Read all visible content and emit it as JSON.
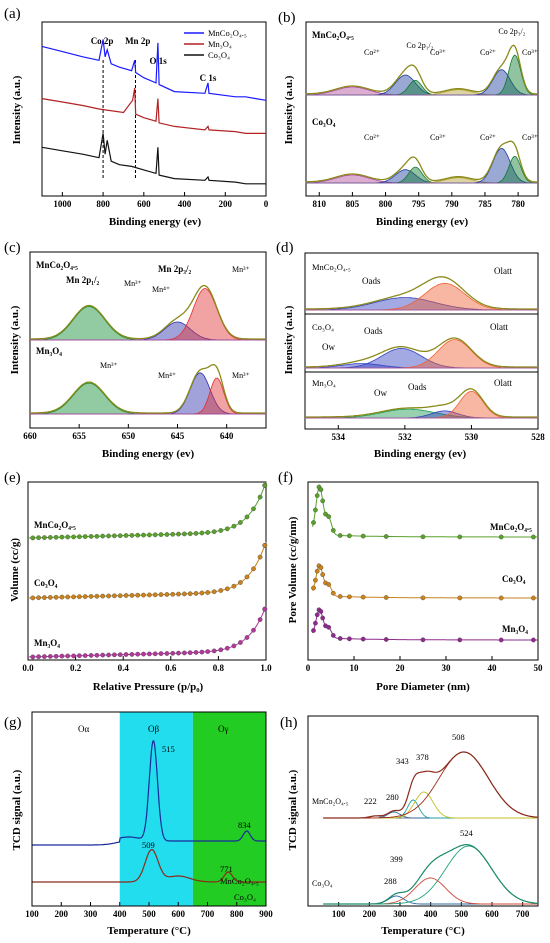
{
  "panels": [
    {
      "id": "a",
      "label": "(a)",
      "type": "line",
      "xlabel": "Binding energy (ev)",
      "ylabel": "Intensity (a.u.)",
      "xlim": [
        1100,
        0
      ],
      "ylim": [
        0,
        100
      ],
      "xticks": [
        1000,
        800,
        600,
        400,
        200,
        0
      ],
      "legend": [
        "MnCo₂O₄.₅",
        "Mn₃O₄",
        "Co₃O₄"
      ],
      "annotations": [
        "Co 2p",
        "Mn 2p",
        "O 1s",
        "C 1s"
      ],
      "series": [
        {
          "name": "MnCo₂O₄.₅",
          "color": "#1a1aff",
          "x": [
            1100,
            1000,
            900,
            820,
            800,
            790,
            780,
            760,
            720,
            660,
            645,
            640,
            600,
            540,
            531,
            525,
            450,
            300,
            285,
            280,
            150,
            100,
            50,
            0
          ],
          "y": [
            86,
            83,
            80,
            78,
            90,
            80,
            84,
            76,
            74,
            72,
            78,
            71,
            68,
            65,
            88,
            64,
            60,
            59,
            65,
            59,
            57,
            57,
            56,
            55
          ]
        },
        {
          "name": "Mn₃O₄",
          "color": "#b22222",
          "x": [
            1100,
            1000,
            900,
            820,
            700,
            655,
            645,
            640,
            600,
            540,
            531,
            525,
            450,
            300,
            285,
            280,
            150,
            100,
            50,
            0
          ],
          "y": [
            56,
            54,
            52,
            50,
            48,
            55,
            62,
            47,
            45,
            43,
            56,
            42,
            40,
            38,
            40,
            38,
            37,
            36,
            36,
            36
          ]
        },
        {
          "name": "Co₃O₄",
          "color": "#111111",
          "x": [
            1100,
            1000,
            900,
            820,
            800,
            790,
            780,
            760,
            720,
            660,
            600,
            540,
            531,
            525,
            450,
            300,
            285,
            280,
            150,
            100,
            50,
            0
          ],
          "y": [
            28,
            26,
            24,
            22,
            36,
            24,
            32,
            20,
            18,
            17,
            15,
            13,
            28,
            12,
            10,
            9,
            11,
            9,
            8,
            7,
            7,
            7
          ]
        }
      ]
    },
    {
      "id": "b",
      "label": "(b)",
      "type": "line",
      "xlabel": "Binding energy (ev)",
      "ylabel": "Intensity (a.u.)",
      "xlim": [
        812,
        777
      ],
      "ylim": [
        0,
        100
      ],
      "xticks": [
        810,
        805,
        800,
        795,
        790,
        785,
        780
      ],
      "subtitles": [
        "MnCo₂O₄.₅",
        "Co₃O₄"
      ],
      "annotations": [
        "Co²⁺",
        "Co 2p₁/₂",
        "Co³⁺",
        "Co²⁺",
        "Co 2p₃/₂",
        "Co³⁺"
      ],
      "stacks": [
        {
          "name": "MnCo₂O₄.₅",
          "peaks": [
            {
              "center": 805,
              "height": 6,
              "width": 2.5,
              "color": "#b04a9a"
            },
            {
              "center": 797,
              "height": 15,
              "width": 1.5,
              "color": "#1f3fa0"
            },
            {
              "center": 795.5,
              "height": 11,
              "width": 1.0,
              "color": "#0e7a2e"
            },
            {
              "center": 789,
              "height": 4,
              "width": 2.0,
              "color": "#b0a030"
            },
            {
              "center": 782.5,
              "height": 19,
              "width": 1.3,
              "color": "#1f3fa0"
            },
            {
              "center": 780.5,
              "height": 30,
              "width": 0.9,
              "color": "#0e7a2e"
            }
          ]
        },
        {
          "name": "Co₃O₄",
          "peaks": [
            {
              "center": 805,
              "height": 6,
              "width": 2.5,
              "color": "#b04a9a"
            },
            {
              "center": 797,
              "height": 10,
              "width": 1.5,
              "color": "#1f3fa0"
            },
            {
              "center": 795.5,
              "height": 12,
              "width": 1.0,
              "color": "#0e7a2e"
            },
            {
              "center": 789,
              "height": 4,
              "width": 2.0,
              "color": "#b0a030"
            },
            {
              "center": 782.5,
              "height": 26,
              "width": 1.3,
              "color": "#1f3fa0"
            },
            {
              "center": 780.5,
              "height": 20,
              "width": 0.9,
              "color": "#0e7a2e"
            }
          ]
        }
      ]
    },
    {
      "id": "c",
      "label": "(c)",
      "type": "line",
      "xlabel": "Binding energy (ev)",
      "ylabel": "Intensity (a.u.)",
      "xlim": [
        660,
        636
      ],
      "ylim": [
        0,
        100
      ],
      "xticks": [
        660,
        655,
        650,
        645,
        640
      ],
      "subtitles": [
        "MnCo₂O₄.₅",
        "Mn₃O₄"
      ],
      "annotations": [
        "Mn 2p₁/₂",
        "Mn³⁺",
        "Mn⁴⁺",
        "Mn 2p₃/₂",
        "Mn³⁺",
        "Mn³⁺",
        "Mn⁴⁺",
        "Mn³⁺"
      ],
      "stacks": [
        {
          "name": "MnCo₂O₄.₅",
          "peaks": [
            {
              "center": 654,
              "height": 26,
              "width": 1.6,
              "color": "#0e8a2e"
            },
            {
              "center": 645,
              "height": 14,
              "width": 1.3,
              "color": "#3030b0"
            },
            {
              "center": 642.2,
              "height": 40,
              "width": 1.2,
              "color": "#e03030"
            }
          ]
        },
        {
          "name": "Mn₃O₄",
          "peaks": [
            {
              "center": 654,
              "height": 24,
              "width": 1.6,
              "color": "#0e8a2e"
            },
            {
              "center": 642.7,
              "height": 32,
              "width": 1.0,
              "color": "#3030b0"
            },
            {
              "center": 641,
              "height": 28,
              "width": 0.7,
              "color": "#e03030"
            }
          ]
        }
      ]
    },
    {
      "id": "d",
      "label": "(d)",
      "type": "line",
      "xlabel": "Binding energy (ev)",
      "ylabel": "Intensity (a.u.)",
      "xlim": [
        535,
        528
      ],
      "ylim": [
        0,
        100
      ],
      "xticks": [
        534,
        532,
        530,
        528
      ],
      "subtitles": [
        "MnCo₂O₄.₅",
        "Co₃O₄",
        "Mn₃O₄"
      ],
      "annotations": [
        "Oads",
        "Olatt",
        "Ow",
        "Oads",
        "Olatt",
        "Ow",
        "Oads",
        "Olatt"
      ],
      "stacks": [
        {
          "name": "MnCo₂O₄.₅",
          "peaks": [
            {
              "center": 532,
              "height": 14,
              "width": 0.9,
              "color": "#3040c0"
            },
            {
              "center": 530.8,
              "height": 30,
              "width": 0.6,
              "color": "#f06030"
            }
          ]
        },
        {
          "name": "Co₃O₄",
          "peaks": [
            {
              "center": 533.3,
              "height": 5,
              "width": 0.6,
              "color": "#3040c0"
            },
            {
              "center": 532.1,
              "height": 22,
              "width": 0.6,
              "color": "#3040c0"
            },
            {
              "center": 530.5,
              "height": 32,
              "width": 0.5,
              "color": "#f06030"
            }
          ]
        },
        {
          "name": "Mn₃O₄",
          "peaks": [
            {
              "center": 531.9,
              "height": 10,
              "width": 0.8,
              "color": "#1a9a50"
            },
            {
              "center": 530.8,
              "height": 8,
              "width": 0.4,
              "color": "#3040c0"
            },
            {
              "center": 530,
              "height": 30,
              "width": 0.35,
              "color": "#f06030"
            }
          ]
        }
      ]
    },
    {
      "id": "e",
      "label": "(e)",
      "type": "scatter",
      "xlabel": "Relative Pressure (p/p₀)",
      "ylabel": "Volume (cc/g)",
      "xlim": [
        0,
        1.0
      ],
      "xticks": [
        0.0,
        0.2,
        0.4,
        0.6,
        0.8,
        1.0
      ],
      "series": [
        {
          "name": "MnCo₂O₄.₅",
          "color": "#5aa02c",
          "offset": 70
        },
        {
          "name": "Co₃O₄",
          "color": "#c8821e",
          "offset": 40
        },
        {
          "name": "Mn₃O₄",
          "color": "#b03a9a",
          "offset": 8
        }
      ]
    },
    {
      "id": "f",
      "label": "(f)",
      "type": "scatter",
      "xlabel": "Pore Diameter (nm)",
      "ylabel": "Pore Volume (cc/g/nm)",
      "xlim": [
        0,
        50
      ],
      "xticks": [
        0,
        10,
        20,
        30,
        40,
        50
      ],
      "series": [
        {
          "name": "MnCo₂O₄.₅",
          "color": "#5aa02c",
          "offset": 72
        },
        {
          "name": "Co₃O₄",
          "color": "#c8821e",
          "offset": 40
        },
        {
          "name": "Mn₃O₄",
          "color": "#8e2c8e",
          "offset": 10
        }
      ]
    },
    {
      "id": "g",
      "label": "(g)",
      "type": "line",
      "xlabel": "Temperature (°C)",
      "ylabel": "TCD signal (a.u.)",
      "xlim": [
        100,
        900
      ],
      "xticks": [
        100,
        200,
        300,
        400,
        500,
        600,
        700,
        800,
        900
      ],
      "regions": [
        {
          "label": "Oα",
          "from": 100,
          "to": 400,
          "color": "#ffffff"
        },
        {
          "label": "Oβ",
          "from": 400,
          "to": 650,
          "color": "#22ddee"
        },
        {
          "label": "Oγ",
          "from": 650,
          "to": 900,
          "color": "#22cc22"
        }
      ],
      "annotations": [
        "515",
        "834",
        "509",
        "771",
        "MnCo₂O₄.₅",
        "Co₃O₄"
      ],
      "series": [
        {
          "name": "MnCo₂O₄.₅",
          "color": "#1a2a9a"
        },
        {
          "name": "Co₃O₄",
          "color": "#8a2a1a"
        }
      ]
    },
    {
      "id": "h",
      "label": "(h)",
      "type": "line",
      "xlabel": "Temperature (°C)",
      "ylabel": "TCD signal (a.u.)",
      "xlim": [
        0,
        750
      ],
      "xticks": [
        100,
        200,
        300,
        400,
        500,
        600,
        700
      ],
      "subtitles": [
        "MnCo₂O₄.₅",
        "Co₃O₄"
      ],
      "annotations": [
        "508",
        "343",
        "378",
        "222",
        "280",
        "524",
        "399",
        "288"
      ]
    }
  ]
}
